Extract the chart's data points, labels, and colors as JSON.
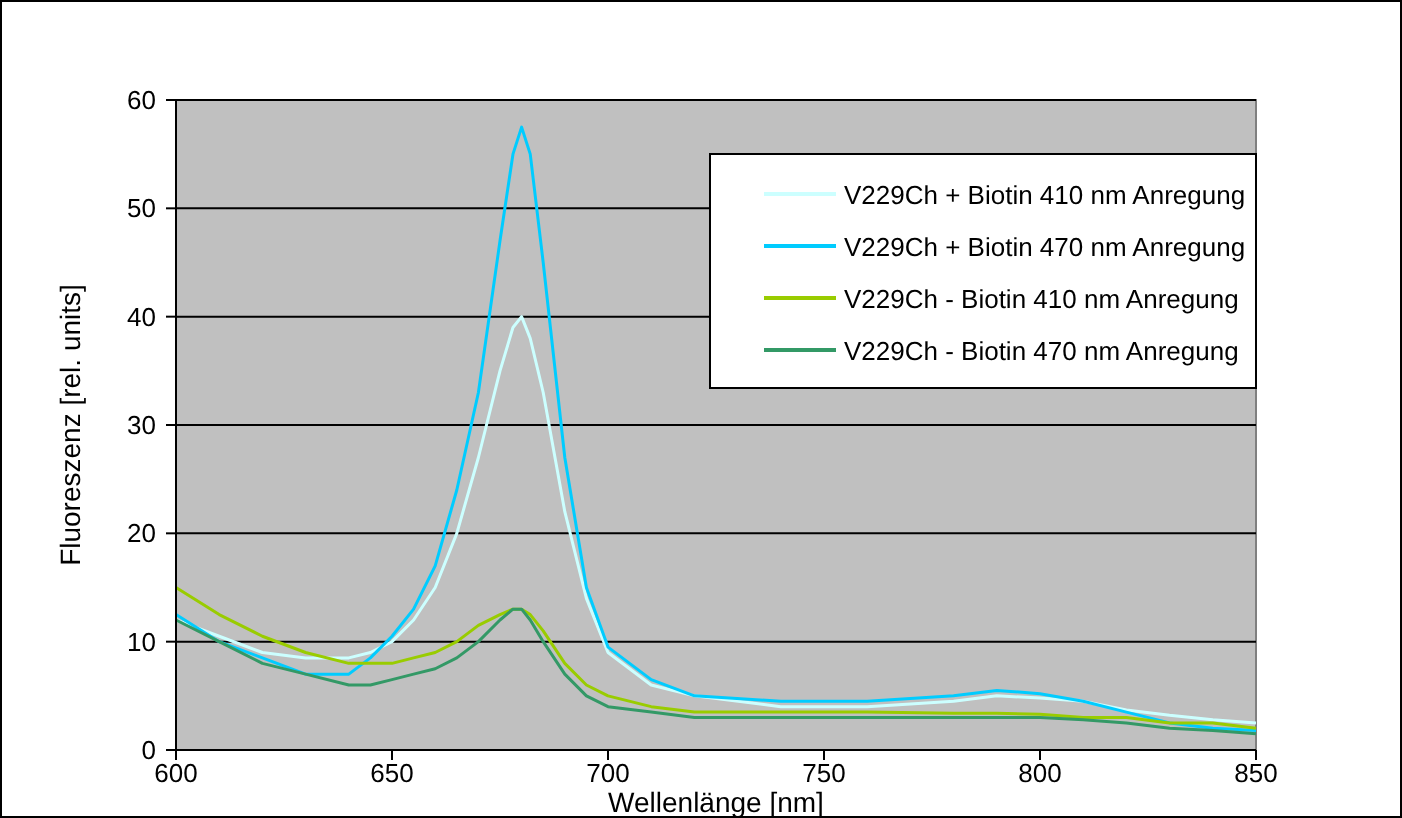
{
  "chart_data": {
    "type": "line",
    "xlabel": "Wellenlänge [nm]",
    "ylabel": "Fluoreszenz [rel. units]",
    "x": [
      600,
      610,
      620,
      630,
      640,
      645,
      650,
      655,
      660,
      665,
      670,
      675,
      678,
      680,
      682,
      685,
      690,
      695,
      700,
      710,
      720,
      740,
      760,
      780,
      790,
      800,
      810,
      820,
      830,
      840,
      850
    ],
    "series": [
      {
        "name": "V229Ch + Biotin 410 nm Anregung",
        "color": "#ccffff",
        "values": [
          12,
          10.5,
          9,
          8.5,
          8.5,
          9,
          10,
          12,
          15,
          20,
          27,
          35,
          39,
          40,
          38,
          33,
          22,
          14,
          9,
          6,
          5,
          4,
          4,
          4.5,
          5,
          4.8,
          4.5,
          3.7,
          3.2,
          2.8,
          2.5
        ]
      },
      {
        "name": "V229Ch + Biotin 470 nm Anregung",
        "color": "#00ccff",
        "values": [
          12.5,
          10,
          8.5,
          7,
          7,
          8.5,
          10.5,
          13,
          17,
          24,
          33,
          47,
          55,
          57.5,
          55,
          45,
          27,
          15,
          9.5,
          6.5,
          5,
          4.5,
          4.5,
          5,
          5.5,
          5.2,
          4.5,
          3.5,
          2.5,
          2,
          1.8
        ]
      },
      {
        "name": "V229Ch - Biotin 410 nm Anregung",
        "color": "#99cc00",
        "values": [
          15,
          12.5,
          10.5,
          9,
          8,
          8,
          8,
          8.5,
          9,
          10,
          11.5,
          12.5,
          13,
          13,
          12.5,
          11,
          8,
          6,
          5,
          4,
          3.5,
          3.5,
          3.5,
          3.4,
          3.4,
          3.3,
          3,
          3,
          2.5,
          2.5,
          2
        ]
      },
      {
        "name": "V229Ch - Biotin 470 nm Anregung",
        "color": "#339966",
        "values": [
          12,
          10,
          8,
          7,
          6,
          6,
          6.5,
          7,
          7.5,
          8.5,
          10,
          12,
          13,
          13,
          12,
          10,
          7,
          5,
          4,
          3.5,
          3,
          3,
          3,
          3,
          3,
          3,
          2.8,
          2.5,
          2,
          1.8,
          1.5
        ]
      }
    ],
    "xlim": [
      600,
      850
    ],
    "xticks": [
      600,
      650,
      700,
      750,
      800,
      850
    ],
    "ylim": [
      0,
      60
    ],
    "yticks": [
      0,
      10,
      20,
      30,
      40,
      50,
      60
    ],
    "grid": "y",
    "legend": "top right",
    "marker": "none",
    "line_style": "solid"
  }
}
